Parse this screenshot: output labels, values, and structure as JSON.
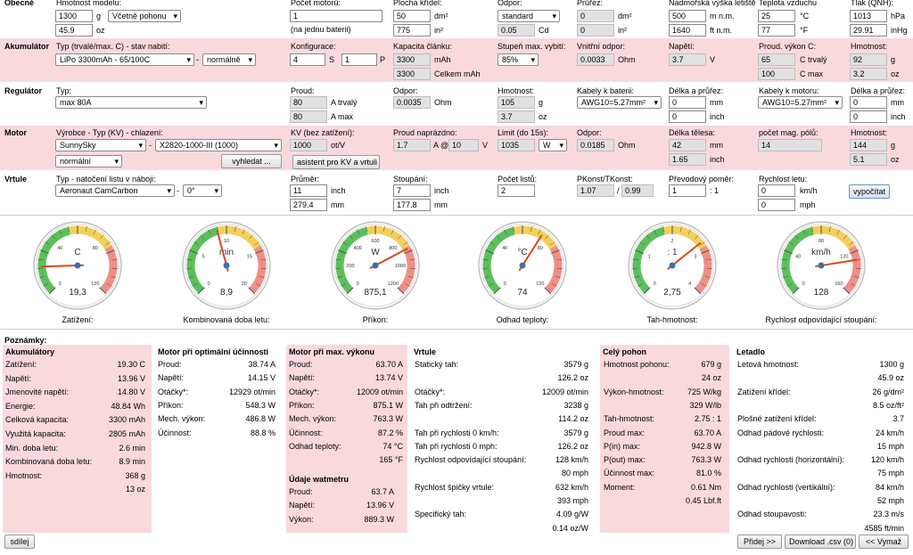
{
  "rows": {
    "general": {
      "title": "Obecné",
      "weight_label": "Hmotnost modelu:",
      "weight_g": "1300",
      "weight_g_unit": "g",
      "weight_mode": "Včetně pohonu",
      "weight_oz": "45.9",
      "weight_oz_unit": "oz",
      "motors_label": "Počet motorů:",
      "motors_value": "1",
      "motors_note": "(na jednu baterii)",
      "wing_area_label": "Plocha křídel:",
      "wing_area_dm2": "50",
      "wing_area_dm2_unit": "dm²",
      "wing_area_in2": "775",
      "wing_area_in2_unit": "in²",
      "drag_label": "Odpor:",
      "drag_mode": "standard",
      "drag_cd": "0.05",
      "drag_cd_unit": "Cd",
      "cross_label": "Průřez:",
      "cross_dm2": "0",
      "cross_dm2_unit": "dm²",
      "cross_in2": "0",
      "cross_in2_unit": "in²",
      "altitude_label": "Nadmořská výška letiště",
      "altitude_m": "500",
      "altitude_m_unit": "m n.m.",
      "altitude_ft": "1640",
      "altitude_ft_unit": "ft n.m.",
      "temp_label": "Teplota vzduchu",
      "temp_c": "25",
      "temp_c_unit": "°C",
      "temp_f": "77",
      "temp_f_unit": "°F",
      "pressure_label": "Tlak (QNH):",
      "pressure_hpa": "1013",
      "pressure_hpa_unit": "hPa",
      "pressure_inhg": "29.91",
      "pressure_inhg_unit": "inHg"
    },
    "battery": {
      "title": "Akumulátor",
      "type_label": "Typ (trvalé/max. C) - stav nabití:",
      "type_value": "LiPo 3300mAh - 65/100C",
      "dash": "-",
      "state_value": "normálně",
      "config_label": "Konfigurace:",
      "config_s": "4",
      "config_s_unit": "S",
      "config_p": "1",
      "config_p_unit": "P",
      "cell_cap_label": "Kapacita článku:",
      "cell_cap": "3300",
      "cell_cap_unit": "mAh",
      "total_cap": "3300",
      "total_cap_unit": "Celkem mAh",
      "discharge_label": "Stupeň max. vybití:",
      "discharge_value": "85%",
      "ir_label": "Vnitřní odpor:",
      "ir_value": "0.0033",
      "ir_unit": "Ohm",
      "voltage_label": "Napětí:",
      "voltage_value": "3.7",
      "voltage_unit": "V",
      "current_label": "Proud. výkon C:",
      "current_cont": "65",
      "current_cont_unit": "C trvalý",
      "current_max": "100",
      "current_max_unit": "C max",
      "weight_label": "Hmotnost:",
      "weight_g": "92",
      "weight_g_unit": "g",
      "weight_oz": "3.2",
      "weight_oz_unit": "oz"
    },
    "esc": {
      "title": "Regulátor",
      "type_label": "Typ:",
      "type_value": "max 80A",
      "current_label": "Proud:",
      "current_cont": "80",
      "current_cont_unit": "A trvalý",
      "current_max": "80",
      "current_max_unit": "A max",
      "res_label": "Odpor:",
      "res_value": "0.0035",
      "res_unit": "Ohm",
      "weight_label": "Hmotnost:",
      "weight_g": "105",
      "weight_g_unit": "g",
      "weight_oz": "3.7",
      "weight_oz_unit": "oz",
      "bat_cable_label": "Kabely k baterii:",
      "bat_cable_value": "AWG10=5.27mm²",
      "len1_label": "Délka a průřez:",
      "len1_mm": "0",
      "len1_mm_unit": "mm",
      "len1_in": "0",
      "len1_in_unit": "inch",
      "mot_cable_label": "Kabely k motoru:",
      "mot_cable_value": "AWG10=5.27mm²",
      "len2_label": "Délka a průřez:",
      "len2_mm": "0",
      "len2_mm_unit": "mm",
      "len2_in": "0",
      "len2_in_unit": "inch"
    },
    "motor": {
      "title": "Motor",
      "maker_label": "Výrobce - Typ (KV) - chlazení:",
      "maker_value": "SunnySky",
      "dash": "-",
      "model_value": "X2820-1000-III (1000)",
      "cooling_value": "normální",
      "search_button": "vyhledat ...",
      "kv_label": "KV (bez zatížení):",
      "kv_value": "1000",
      "kv_unit": "ot/V",
      "kv_button": "asistent pro KV a vrtuli",
      "idle_label": "Proud naprázdno:",
      "idle_a": "1.7",
      "idle_at": "A @",
      "idle_v": "10",
      "idle_v_unit": "V",
      "limit_label": "Limit (do 15s):",
      "limit_value": "1035",
      "limit_unit": "W",
      "res_label": "Odpor:",
      "res_value": "0.0185",
      "res_unit": "Ohm",
      "length_label": "Délka tělesa:",
      "length_mm": "42",
      "length_mm_unit": "mm",
      "length_in": "1.65",
      "length_in_unit": "inch",
      "poles_label": "počet mag. pólů:",
      "poles_value": "14",
      "weight_label": "Hmotnost:",
      "weight_g": "144",
      "weight_g_unit": "g",
      "weight_oz": "5.1",
      "weight_oz_unit": "oz"
    },
    "prop": {
      "title": "Vrtule",
      "type_label": "Typ - natočení listu v náboji:",
      "type_value": "Aeronaut CamCarbon",
      "dash": "-",
      "angle_value": "0°",
      "dia_label": "Průměr:",
      "dia_in": "11",
      "dia_in_unit": "inch",
      "dia_mm": "279.4",
      "dia_mm_unit": "mm",
      "pitch_label": "Stoupání:",
      "pitch_in": "7",
      "pitch_in_unit": "inch",
      "pitch_mm": "177.8",
      "pitch_mm_unit": "mm",
      "blades_label": "Počet listů:",
      "blades_value": "2",
      "pconst_label": "PKonst/TKonst:",
      "pconst_value": "1.07",
      "pconst_sep": "/",
      "tconst_value": "0.99",
      "gear_label": "Převodový poměr:",
      "gear_value": "1",
      "gear_unit": ": 1",
      "speed_label": "Rychlost letu:",
      "speed_kmh": "0",
      "speed_kmh_unit": "km/h",
      "speed_mph": "0",
      "speed_mph_unit": "mph",
      "calc_button": "vypočítat"
    }
  },
  "gauges": [
    {
      "unit": "C",
      "value": "19,3",
      "caption": "Zatížení:",
      "ticks": [
        "0",
        "40",
        "80",
        "120"
      ],
      "needle_fraction": 0.16
    },
    {
      "unit": "min",
      "value": "8,9",
      "caption": "Kombinovaná doba letu:",
      "ticks": [
        "0",
        "5",
        "10",
        "15",
        "20"
      ],
      "needle_fraction": 0.445
    },
    {
      "unit": "W",
      "value": "875,1",
      "caption": "Příkon:",
      "ticks": [
        "0",
        "200",
        "400",
        "600",
        "800",
        "1000",
        "1200"
      ],
      "needle_fraction": 0.73
    },
    {
      "unit": "°C",
      "value": "74",
      "caption": "Odhad teploty:",
      "ticks": [
        "0",
        "40",
        "80",
        "120"
      ],
      "needle_fraction": 0.62
    },
    {
      "unit": ": 1",
      "value": "2,75",
      "caption": "Tah-hmotnost:",
      "ticks": [
        "0",
        "1",
        "2",
        "3",
        "4"
      ],
      "needle_fraction": 0.69
    },
    {
      "unit": "km/h",
      "value": "128",
      "caption": "Rychlost odpovídající stoupání:",
      "ticks": [
        "0",
        "40",
        "80",
        "120",
        "160"
      ],
      "needle_fraction": 0.8
    }
  ],
  "notes_label": "Poznámky:",
  "results": {
    "battery": {
      "title": "Akumulátory",
      "rows": [
        [
          "Zatížení:",
          "19.30 C"
        ],
        [
          "Napětí:",
          "13.96 V"
        ],
        [
          "Jmenovité napětí:",
          "14.80 V"
        ],
        [
          "Energie:",
          "48.84 Wh"
        ],
        [
          "Celková kapacita:",
          "3300 mAh"
        ],
        [
          "Využitá kapacita:",
          "2805 mAh"
        ],
        [
          "Min. doba letu:",
          "2.6 min"
        ],
        [
          "Kombinovaná doba letu:",
          "8.9 min"
        ],
        [
          "Hmotnost:",
          "368 g"
        ],
        [
          "",
          "13 oz"
        ]
      ]
    },
    "motor_opt": {
      "title": "Motor při optimální účinnosti",
      "rows": [
        [
          "Proud:",
          "38.74 A"
        ],
        [
          "Napětí:",
          "14.15 V"
        ],
        [
          "Otáčky*:",
          "12929 ot/min"
        ],
        [
          "Příkon:",
          "548.3 W"
        ],
        [
          "Mech. výkon:",
          "486.8 W"
        ],
        [
          "Účinnost:",
          "88.8 %"
        ]
      ]
    },
    "motor_max": {
      "title": "Motor při max. výkonu",
      "rows": [
        [
          "Proud:",
          "63.70 A"
        ],
        [
          "Napětí:",
          "13.74 V"
        ],
        [
          "Otáčky*:",
          "12009 ot/min"
        ],
        [
          "Příkon:",
          "875.1 W"
        ],
        [
          "Mech. výkon:",
          "763.3 W"
        ],
        [
          "Účinnost:",
          "87.2 %"
        ],
        [
          "Odhad teploty:",
          "74 °C"
        ],
        [
          "",
          "165 °F"
        ]
      ],
      "watt_title": "Údaje watmetru",
      "watt_rows": [
        [
          "Proud:",
          "63.7 A"
        ],
        [
          "Napětí:",
          "13.96 V"
        ],
        [
          "Výkon:",
          "889.3 W"
        ]
      ]
    },
    "prop": {
      "title": "Vrtule",
      "rows": [
        [
          "Statický tah:",
          "3579 g"
        ],
        [
          "",
          "126.2 oz"
        ],
        [
          "Otáčky*:",
          "12009 ot/min"
        ],
        [
          "Tah při odtržení:",
          "3238 g"
        ],
        [
          "",
          "114.2 oz"
        ],
        [
          "Tah při rychlosti 0 km/h:",
          "3579 g"
        ],
        [
          "Tah při rychlosti 0 mph:",
          "126.2 oz"
        ],
        [
          "Rychlost odpovídající stoupání:",
          "128 km/h"
        ],
        [
          "",
          "80 mph"
        ],
        [
          "Rychlost špičky vrtule:",
          "632 km/h"
        ],
        [
          "",
          "393 mph"
        ],
        [
          "Specifický tah:",
          "4.09 g/W"
        ],
        [
          "",
          "0.14 oz/W"
        ]
      ]
    },
    "drive": {
      "title": "Celý pohon",
      "rows": [
        [
          "Hmotnost pohonu:",
          "679 g"
        ],
        [
          "",
          "24 oz"
        ],
        [
          "Výkon-hmotnost:",
          "725 W/kg"
        ],
        [
          "",
          "329 W/lb"
        ],
        [
          "Tah-hmotnost:",
          "2.75 : 1"
        ],
        [
          "Proud max:",
          "63.70 A"
        ],
        [
          "P(in) max:",
          "942.8 W"
        ],
        [
          "P(out) max:",
          "763.3 W"
        ],
        [
          "Účinnost max:",
          "81.0 %"
        ],
        [
          "Moment:",
          "0.61 Nm"
        ],
        [
          "",
          "0.45 Lbf.ft"
        ]
      ]
    },
    "plane": {
      "title": "Letadlo",
      "rows": [
        [
          "Letová hmotnost:",
          "1300 g"
        ],
        [
          "",
          "45.9 oz"
        ],
        [
          "Zatížení křídel:",
          "26 g/dm²"
        ],
        [
          "",
          "8.5 oz/ft²"
        ],
        [
          "Plošné zatížení křídel:",
          "3.7"
        ],
        [
          "Odhad pádové rychlosti:",
          "24 km/h"
        ],
        [
          "",
          "15 mph"
        ],
        [
          "Odhad rychlosti (horizontální):",
          "120 km/h"
        ],
        [
          "",
          "75 mph"
        ],
        [
          "Odhad rychlosti (vertikální):",
          "84 km/h"
        ],
        [
          "",
          "52 mph"
        ],
        [
          "Odhad stoupavosti:",
          "23.3 m/s"
        ],
        [
          "",
          "4585 ft/min"
        ]
      ]
    }
  },
  "footer": {
    "share_button": "sdílej",
    "add_button": "Přidej >>",
    "download_button": "Download .csv (0)",
    "clear_button": "<< Vymaž"
  },
  "colors": {
    "pink": "#fad9dd",
    "gauge_green": "#5cbf5c",
    "gauge_yellow": "#f3cf5a",
    "gauge_red": "#ef8f86",
    "needle": "#d84a1b"
  }
}
